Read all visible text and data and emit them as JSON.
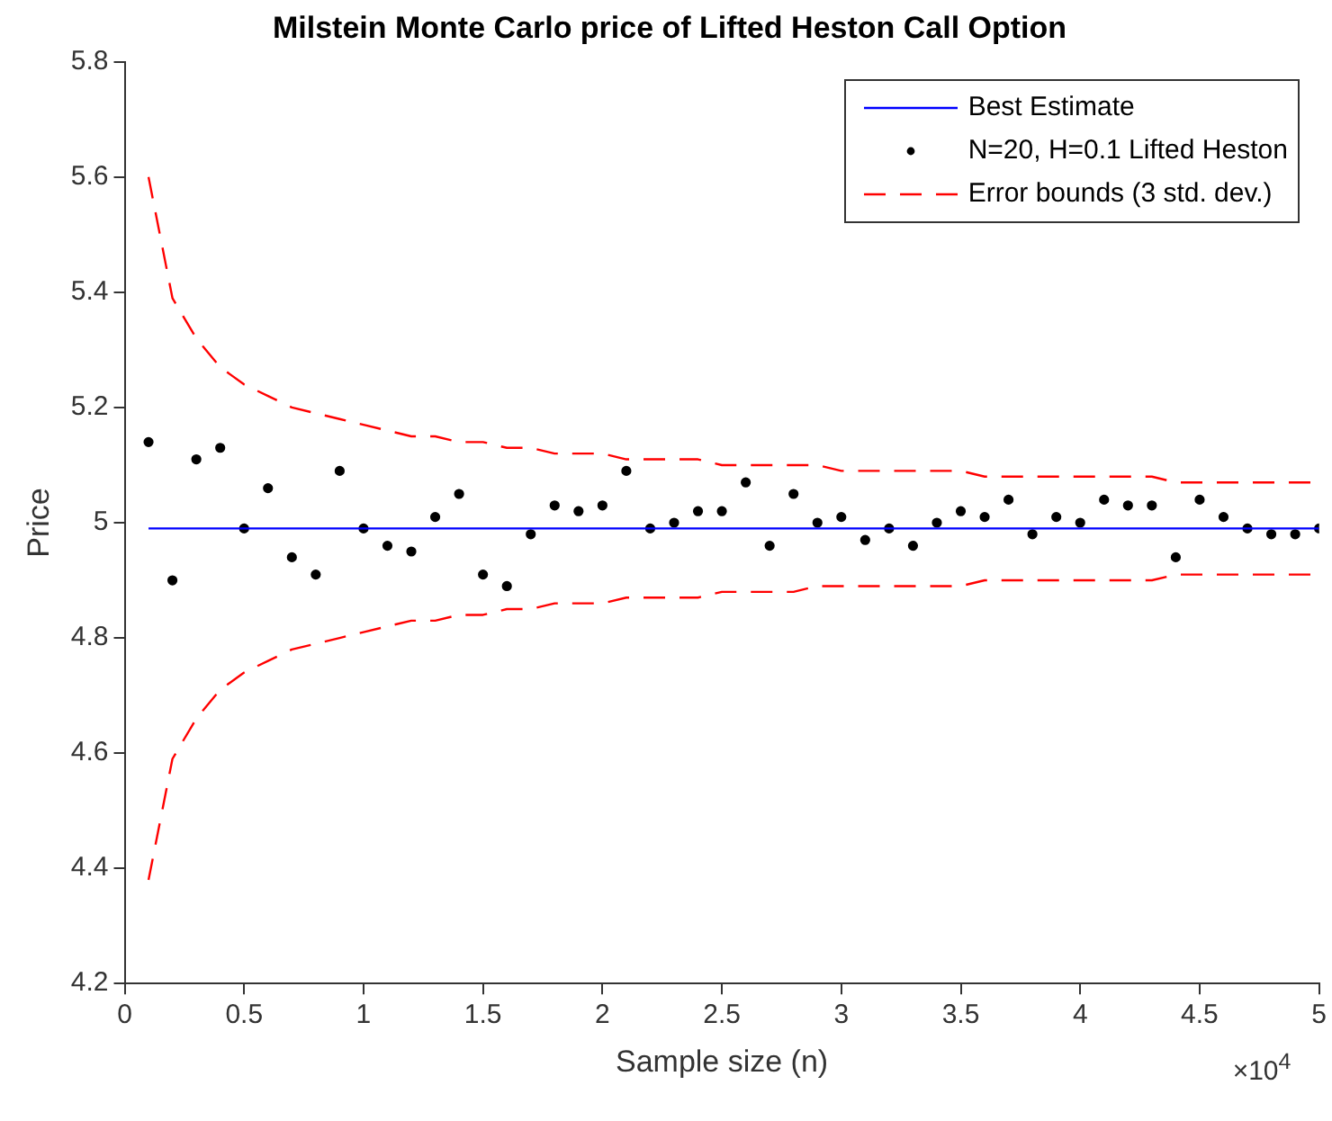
{
  "chart_data": {
    "type": "scatter",
    "title": "Milstein Monte Carlo price of Lifted Heston Call Option",
    "xlabel": "Sample size (n)",
    "ylabel": "Price",
    "xlim": [
      0,
      5
    ],
    "xticks": [
      0,
      0.5,
      1,
      1.5,
      2,
      2.5,
      3,
      3.5,
      4,
      4.5,
      5
    ],
    "ylim": [
      4.2,
      5.8
    ],
    "yticks": [
      4.2,
      4.4,
      4.6,
      4.8,
      5,
      5.2,
      5.4,
      5.6,
      5.8
    ],
    "grid": false,
    "legend": "top right",
    "annotations": [
      "×10$^{4}$"
    ],
    "series": [
      {
        "name": "Best Estimate",
        "type": "line",
        "color": "#0000ff",
        "marker": "none",
        "line_style": "solid",
        "x": [
          0.1,
          5
        ],
        "values": [
          4.99,
          4.99
        ]
      },
      {
        "name": "N=20, H=0.1 Lifted Heston",
        "color": "#000000",
        "marker": "circle",
        "x": [
          0.1,
          0.2,
          0.3,
          0.4,
          0.5,
          0.6,
          0.7,
          0.8,
          0.9,
          1,
          1.1,
          1.2,
          1.3,
          1.4,
          1.5,
          1.6,
          1.7,
          1.8,
          1.9,
          2,
          2.1,
          2.2,
          2.3,
          2.4,
          2.5,
          2.6,
          2.7,
          2.8,
          2.9,
          3,
          3.1,
          3.2,
          3.3,
          3.4,
          3.5,
          3.6,
          3.7,
          3.8,
          3.9,
          4,
          4.1,
          4.2,
          4.3,
          4.4,
          4.5,
          4.6,
          4.7,
          4.8,
          4.9,
          5
        ],
        "values": [
          5.14,
          4.9,
          5.11,
          5.13,
          4.99,
          5.06,
          4.94,
          4.91,
          5.09,
          4.99,
          4.96,
          4.95,
          5.01,
          5.05,
          4.91,
          4.89,
          4.98,
          5.03,
          5.02,
          5.03,
          5.09,
          4.99,
          5,
          5.02,
          5.02,
          5.07,
          4.96,
          5.05,
          5,
          5.01,
          4.97,
          4.99,
          4.96,
          5,
          5.02,
          5.01,
          5.04,
          4.98,
          5.01,
          5,
          5.04,
          5.03,
          5.03,
          4.94,
          5.04,
          5.01,
          4.99,
          4.98,
          4.98,
          4.99
        ]
      },
      {
        "name": "Error bounds (3 std. dev.)",
        "type": "line",
        "color": "#ff0000",
        "marker": "none",
        "line_style": "dashed",
        "x": [
          0.1,
          0.2,
          0.3,
          0.4,
          0.5,
          0.6,
          0.7,
          0.8,
          0.9,
          1,
          1.1,
          1.2,
          1.3,
          1.4,
          1.5,
          1.6,
          1.7,
          1.8,
          1.9,
          2,
          2.1,
          2.2,
          2.3,
          2.4,
          2.5,
          2.6,
          2.7,
          2.8,
          2.9,
          3,
          3.1,
          3.2,
          3.3,
          3.4,
          3.5,
          3.6,
          3.7,
          3.8,
          3.9,
          4,
          4.1,
          4.2,
          4.3,
          4.4,
          4.5,
          4.6,
          4.7,
          4.8,
          4.9,
          5
        ],
        "values": [
          5.6,
          5.39,
          5.32,
          5.27,
          5.24,
          5.22,
          5.2,
          5.19,
          5.18,
          5.17,
          5.16,
          5.15,
          5.15,
          5.14,
          5.14,
          5.13,
          5.13,
          5.12,
          5.12,
          5.12,
          5.11,
          5.11,
          5.11,
          5.11,
          5.1,
          5.1,
          5.1,
          5.1,
          5.1,
          5.09,
          5.09,
          5.09,
          5.09,
          5.09,
          5.09,
          5.08,
          5.08,
          5.08,
          5.08,
          5.08,
          5.08,
          5.08,
          5.08,
          5.07,
          5.07,
          5.07,
          5.07,
          5.07,
          5.07,
          5.07
        ]
      },
      {
        "type": "line",
        "color": "#ff0000",
        "marker": "none",
        "line_style": "dashed",
        "x": [
          0.1,
          0.2,
          0.3,
          0.4,
          0.5,
          0.6,
          0.7,
          0.8,
          0.9,
          1,
          1.1,
          1.2,
          1.3,
          1.4,
          1.5,
          1.6,
          1.7,
          1.8,
          1.9,
          2,
          2.1,
          2.2,
          2.3,
          2.4,
          2.5,
          2.6,
          2.7,
          2.8,
          2.9,
          3,
          3.1,
          3.2,
          3.3,
          3.4,
          3.5,
          3.6,
          3.7,
          3.8,
          3.9,
          4,
          4.1,
          4.2,
          4.3,
          4.4,
          4.5,
          4.6,
          4.7,
          4.8,
          4.9,
          5
        ],
        "values": [
          4.38,
          4.59,
          4.66,
          4.71,
          4.74,
          4.76,
          4.78,
          4.79,
          4.8,
          4.81,
          4.82,
          4.83,
          4.83,
          4.84,
          4.84,
          4.85,
          4.85,
          4.86,
          4.86,
          4.86,
          4.87,
          4.87,
          4.87,
          4.87,
          4.88,
          4.88,
          4.88,
          4.88,
          4.89,
          4.89,
          4.89,
          4.89,
          4.89,
          4.89,
          4.89,
          4.9,
          4.9,
          4.9,
          4.9,
          4.9,
          4.9,
          4.9,
          4.9,
          4.91,
          4.91,
          4.91,
          4.91,
          4.91,
          4.91,
          4.91
        ]
      }
    ]
  }
}
